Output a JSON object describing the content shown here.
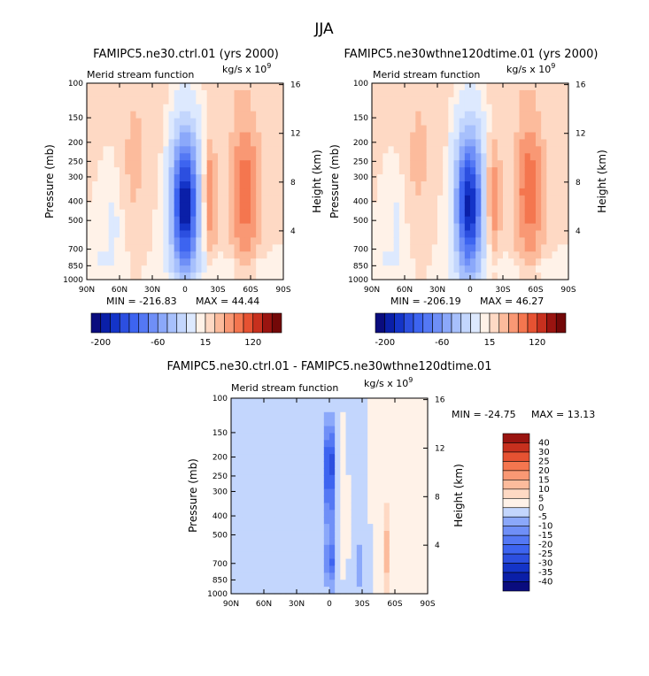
{
  "season": "JJA",
  "levels_main": [
    -200,
    -180,
    -160,
    -140,
    -120,
    -100,
    -80,
    -60,
    -40,
    -20,
    -5,
    0,
    5,
    15,
    30,
    60,
    90,
    120,
    150,
    180
  ],
  "levels_diff": [
    -40,
    -35,
    -30,
    -25,
    -20,
    -15,
    -10,
    -5,
    0,
    5,
    10,
    15,
    20,
    25,
    30,
    40
  ],
  "colors_main": [
    "#0a0c7e",
    "#0a1fa8",
    "#1434c8",
    "#2c4fe0",
    "#3d64f0",
    "#5478f4",
    "#6f8ff7",
    "#8ba8fa",
    "#a7c0fc",
    "#c3d6fd",
    "#dde9fe",
    "#fff2e8",
    "#fed9c4",
    "#fcbb9c",
    "#f99874",
    "#f4764f",
    "#e65232",
    "#c7301e",
    "#9a1410",
    "#730808"
  ],
  "colors_diff": [
    "#0a0c7e",
    "#0a1fa8",
    "#1434c8",
    "#2c4fe0",
    "#3d64f0",
    "#5478f4",
    "#6f8ff7",
    "#8ba8fa",
    "#c3d6fd",
    "#fff2e8",
    "#fed9c4",
    "#fcbb9c",
    "#f99874",
    "#f4764f",
    "#e65232",
    "#c7301e",
    "#9a1410"
  ],
  "chart_data": [
    {
      "type": "heatmap",
      "title": "FAMIPC5.ne30.ctrl.01 (yrs 2000)",
      "subtitle_left": "Merid stream function",
      "units": "kg/s x 10",
      "units_exp": "9",
      "ylabel": "Pressure (mb)",
      "ylabel_right": "Height (km)",
      "x_ticks": [
        "90N",
        "60N",
        "30N",
        "0",
        "30S",
        "60S",
        "90S"
      ],
      "x_range": [
        90,
        -90
      ],
      "y_ticks": [
        100,
        150,
        200,
        250,
        300,
        400,
        500,
        700,
        850,
        1000
      ],
      "y_range": [
        100,
        1000
      ],
      "y_scale": "log",
      "height_ticks": [
        16,
        12,
        8,
        4
      ],
      "min_label": "MIN = -216.83",
      "max_label": "MAX = 44.44",
      "min": -216.83,
      "max": 44.44,
      "colorbar_labels": [
        "-200",
        "-60",
        "15",
        "120"
      ],
      "colorbar_orientation": "horizontal"
    },
    {
      "type": "heatmap",
      "title": "FAMIPC5.ne30wthne120dtime.01 (yrs 2000)",
      "subtitle_left": "Merid stream function",
      "units": "kg/s x 10",
      "units_exp": "9",
      "ylabel": "Pressure (mb)",
      "ylabel_right": "Height (km)",
      "x_ticks": [
        "90N",
        "60N",
        "30N",
        "0",
        "30S",
        "60S",
        "90S"
      ],
      "x_range": [
        90,
        -90
      ],
      "y_ticks": [
        100,
        150,
        200,
        250,
        300,
        400,
        500,
        700,
        850,
        1000
      ],
      "y_range": [
        100,
        1000
      ],
      "y_scale": "log",
      "height_ticks": [
        16,
        12,
        8,
        4
      ],
      "min_label": "MIN = -206.19",
      "max_label": "MAX = 46.27",
      "min": -206.19,
      "max": 46.27,
      "colorbar_labels": [
        "-200",
        "-60",
        "15",
        "120"
      ],
      "colorbar_orientation": "horizontal"
    },
    {
      "type": "heatmap",
      "title": "FAMIPC5.ne30.ctrl.01 - FAMIPC5.ne30wthne120dtime.01",
      "subtitle_left": "Merid stream function",
      "units": "kg/s x 10",
      "units_exp": "9",
      "ylabel": "Pressure (mb)",
      "ylabel_right": "Height (km)",
      "x_ticks": [
        "90N",
        "60N",
        "30N",
        "0",
        "30S",
        "60S",
        "90S"
      ],
      "x_range": [
        90,
        -90
      ],
      "y_ticks": [
        100,
        150,
        200,
        250,
        300,
        400,
        500,
        700,
        850,
        1000
      ],
      "y_range": [
        100,
        1000
      ],
      "y_scale": "log",
      "height_ticks": [
        16,
        12,
        8,
        4
      ],
      "min_label": "MIN = -24.75",
      "max_label": "MAX = 13.13",
      "min": -24.75,
      "max": 13.13,
      "colorbar_labels": [
        "40",
        "30",
        "25",
        "20",
        "15",
        "10",
        "5",
        "0",
        "-5",
        "-10",
        "-15",
        "-20",
        "-25",
        "-30",
        "-35",
        "-40"
      ],
      "colorbar_orientation": "vertical"
    }
  ]
}
